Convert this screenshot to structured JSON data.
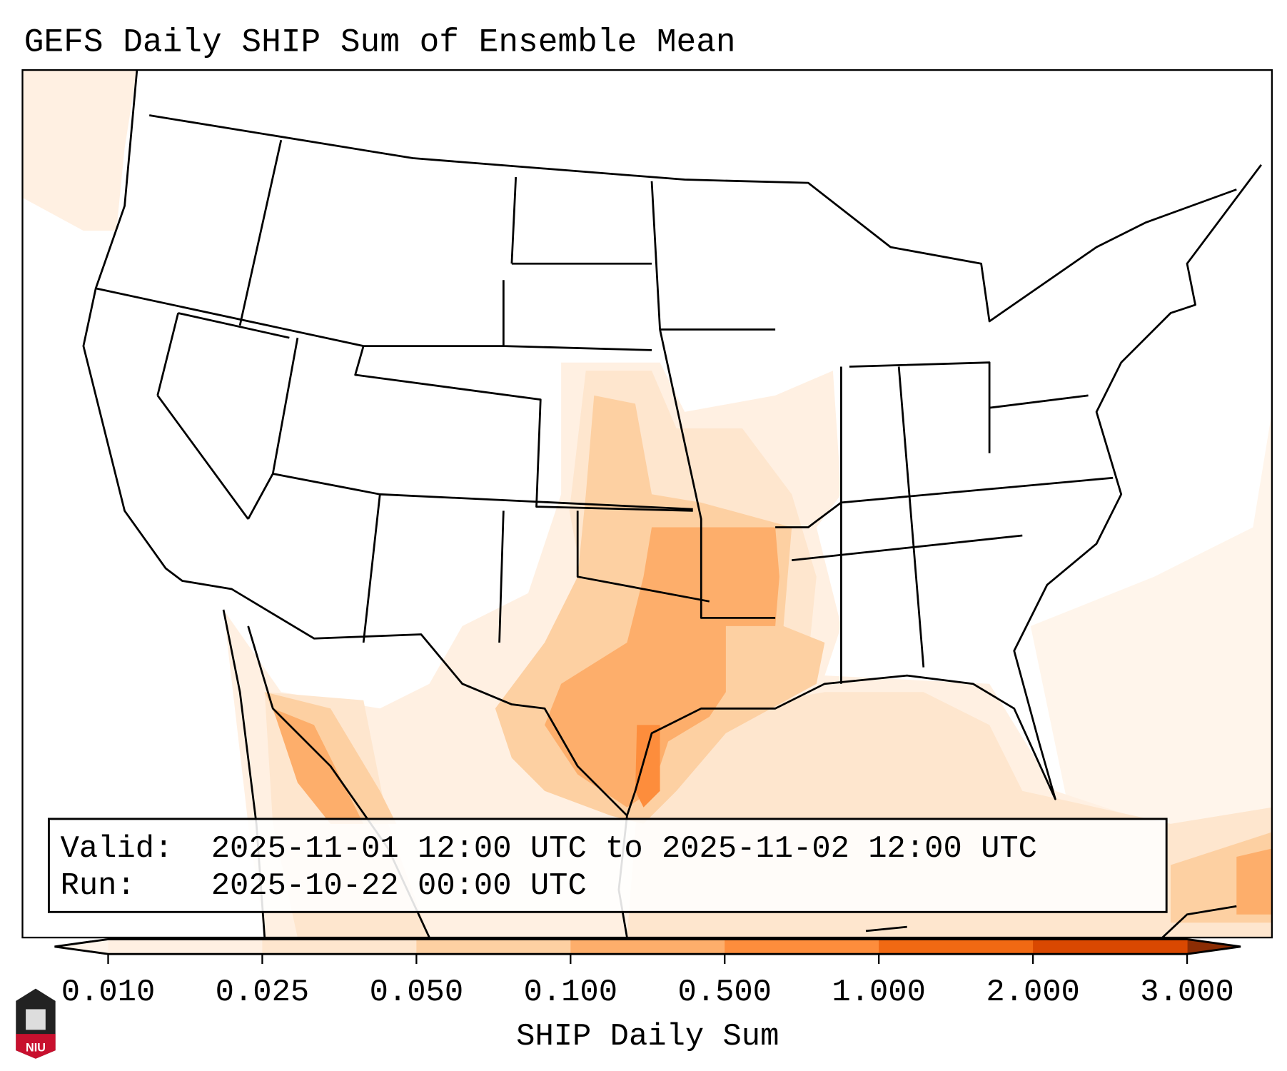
{
  "title": "GEFS Daily SHIP Sum of Ensemble Mean",
  "info_box": {
    "valid_label": "Valid:",
    "valid_value": "2025-11-01 12:00 UTC to 2025-11-02 12:00 UTC",
    "run_label": "Run:",
    "run_value": "2025-10-22 00:00 UTC"
  },
  "colorbar": {
    "label": "SHIP Daily Sum",
    "ticks": [
      "0.010",
      "0.025",
      "0.050",
      "0.100",
      "0.500",
      "1.000",
      "2.000",
      "3.000"
    ],
    "colors": [
      "#fff0e2",
      "#fee6ce",
      "#fdd0a2",
      "#fdae6b",
      "#fd8d3c",
      "#f16913",
      "#d94801"
    ],
    "under_color": "#fff5eb",
    "over_color": "#8c2d04"
  },
  "logo": {
    "text": "NIU",
    "color": "#c8102e"
  }
}
